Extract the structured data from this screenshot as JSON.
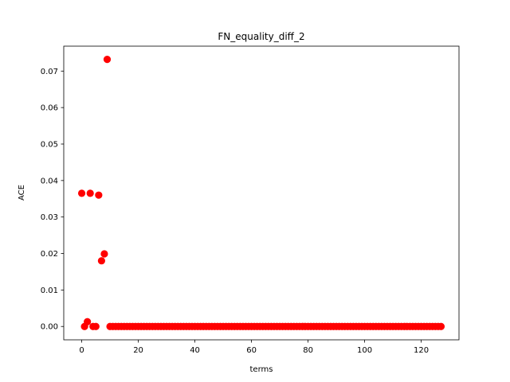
{
  "chart_data": {
    "type": "scatter",
    "title": "FN_equality_diff_2",
    "xlabel": "terms",
    "ylabel": "ACE",
    "xlim": [
      -6.35,
      133.35
    ],
    "ylim": [
      -0.00366,
      0.07683
    ],
    "xticks": [
      0,
      20,
      40,
      60,
      80,
      100,
      120
    ],
    "yticks": [
      0.0,
      0.01,
      0.02,
      0.03,
      0.04,
      0.05,
      0.06,
      0.07
    ],
    "ytick_labels": [
      "0.00",
      "0.01",
      "0.02",
      "0.03",
      "0.04",
      "0.05",
      "0.06",
      "0.07"
    ],
    "grid": false,
    "marker_color": "#ff0000",
    "x": [
      0,
      1,
      2,
      3,
      4,
      5,
      6,
      7,
      8,
      9,
      10,
      11,
      12,
      13,
      14,
      15,
      16,
      17,
      18,
      19,
      20,
      21,
      22,
      23,
      24,
      25,
      26,
      27,
      28,
      29,
      30,
      31,
      32,
      33,
      34,
      35,
      36,
      37,
      38,
      39,
      40,
      41,
      42,
      43,
      44,
      45,
      46,
      47,
      48,
      49,
      50,
      51,
      52,
      53,
      54,
      55,
      56,
      57,
      58,
      59,
      60,
      61,
      62,
      63,
      64,
      65,
      66,
      67,
      68,
      69,
      70,
      71,
      72,
      73,
      74,
      75,
      76,
      77,
      78,
      79,
      80,
      81,
      82,
      83,
      84,
      85,
      86,
      87,
      88,
      89,
      90,
      91,
      92,
      93,
      94,
      95,
      96,
      97,
      98,
      99,
      100,
      101,
      102,
      103,
      104,
      105,
      106,
      107,
      108,
      109,
      110,
      111,
      112,
      113,
      114,
      115,
      116,
      117,
      118,
      119,
      120,
      121,
      122,
      123,
      124,
      125,
      126,
      127
    ],
    "y": [
      0.0365,
      0.0,
      0.0013,
      0.0365,
      0.0,
      0.0,
      0.036,
      0.018,
      0.0199,
      0.0732,
      0,
      0,
      0,
      0,
      0,
      0,
      0,
      0,
      0,
      0,
      0,
      0,
      0,
      0,
      0,
      0,
      0,
      0,
      0,
      0,
      0,
      0,
      0,
      0,
      0,
      0,
      0,
      0,
      0,
      0,
      0,
      0,
      0,
      0,
      0,
      0,
      0,
      0,
      0,
      0,
      0,
      0,
      0,
      0,
      0,
      0,
      0,
      0,
      0,
      0,
      0,
      0,
      0,
      0,
      0,
      0,
      0,
      0,
      0,
      0,
      0,
      0,
      0,
      0,
      0,
      0,
      0,
      0,
      0,
      0,
      0,
      0,
      0,
      0,
      0,
      0,
      0,
      0,
      0,
      0,
      0,
      0,
      0,
      0,
      0,
      0,
      0,
      0,
      0,
      0,
      0,
      0,
      0,
      0,
      0,
      0,
      0,
      0,
      0,
      0,
      0,
      0,
      0,
      0,
      0,
      0,
      0,
      0,
      0,
      0,
      0,
      0,
      0,
      0,
      0,
      0,
      0,
      0
    ]
  }
}
